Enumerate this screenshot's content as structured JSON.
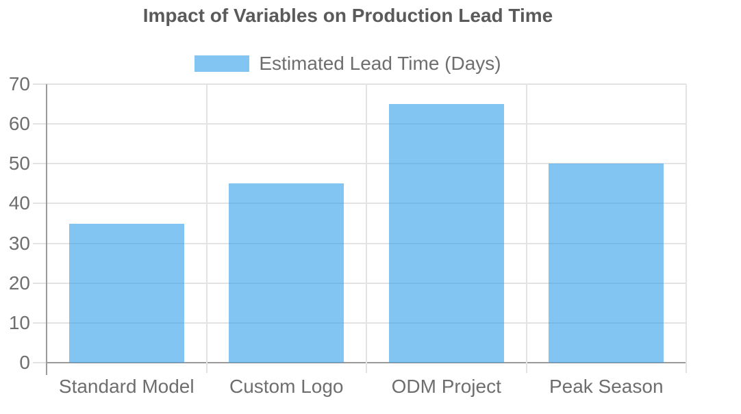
{
  "chart_data": {
    "type": "bar",
    "title": "Impact of Variables on Production Lead Time",
    "categories": [
      "Standard Model",
      "Custom Logo",
      "ODM Project",
      "Peak Season"
    ],
    "series": [
      {
        "name": "Estimated Lead Time (Days)",
        "values": [
          35,
          45,
          65,
          50
        ]
      }
    ],
    "xlabel": "",
    "ylabel": "",
    "ylim": [
      0,
      70
    ],
    "yticks": [
      0,
      10,
      20,
      30,
      40,
      50,
      60,
      70
    ],
    "grid": true,
    "legend_position": "top-center"
  },
  "colors": {
    "background": "#ffffff",
    "bar_fill": "#36A2EB",
    "bar_opacity": 0.62,
    "grid_line": "#e3e3e3",
    "axis_line": "#9a9a9a",
    "title_text": "#5a5a5a",
    "label_text": "#6e6e6e"
  }
}
